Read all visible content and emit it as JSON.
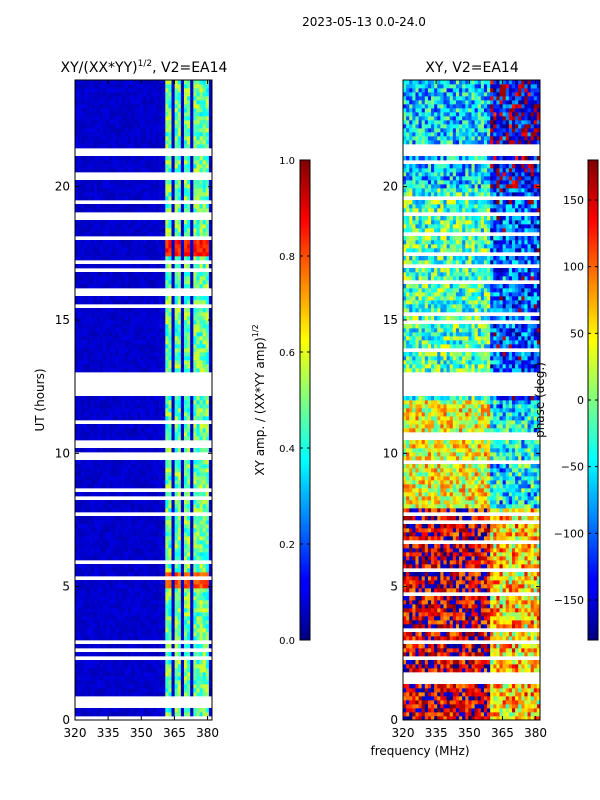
{
  "figure": {
    "suptitle": "2023-05-13 0.0-24.0",
    "xlabel": "frequency (MHz)",
    "ylabel": "UT (hours)"
  },
  "chart_data": [
    {
      "type": "heatmap",
      "title_main": "XY/(XX*YY)",
      "title_sup": "1/2",
      "title_tail": ", V2=EA14",
      "x": {
        "min": 320,
        "max": 382,
        "ticks": [
          320,
          335,
          350,
          365,
          380
        ],
        "tick_labels": [
          "320",
          "335",
          "350",
          "365",
          "380"
        ]
      },
      "y": {
        "min": 0,
        "max": 24,
        "ticks": [
          0,
          5,
          10,
          15,
          20
        ],
        "tick_labels": [
          "0",
          "5",
          "10",
          "15",
          "20"
        ]
      },
      "colorbar": {
        "label_main": "XY amp. / (XX*YY amp)",
        "label_sup": "1/2",
        "min": 0.0,
        "max": 1.0,
        "ticks": [
          0.0,
          0.2,
          0.4,
          0.6,
          0.8,
          1.0
        ],
        "tick_labels": [
          "0.0",
          "0.2",
          "0.4",
          "0.6",
          "0.8",
          "1.0"
        ]
      },
      "flagged_ut_ranges": [
        [
          12.1,
          13.1
        ],
        [
          21.1,
          21.5
        ],
        [
          7.65,
          7.8
        ]
      ],
      "high_amplitude_channels_mhz": [
        [
          361,
          364
        ],
        [
          365,
          368
        ],
        [
          369,
          372
        ],
        [
          374,
          376
        ],
        [
          377,
          380
        ]
      ],
      "hotspots": [
        {
          "ut": [
            17.4,
            18.0
          ],
          "value": 0.9
        },
        {
          "ut": [
            4.9,
            5.5
          ],
          "value": 0.85
        }
      ],
      "background_value": 0.05
    },
    {
      "type": "heatmap",
      "title": "XY, V2=EA14",
      "x": {
        "min": 320,
        "max": 382,
        "ticks": [
          320,
          335,
          350,
          365,
          380
        ],
        "tick_labels": [
          "320",
          "335",
          "350",
          "365",
          "380"
        ]
      },
      "y": {
        "min": 0,
        "max": 24,
        "ticks": [
          0,
          5,
          10,
          15,
          20
        ],
        "tick_labels": [
          "0",
          "5",
          "10",
          "15",
          "20"
        ]
      },
      "colorbar": {
        "label": "phase (deg.)",
        "min": -180,
        "max": 180,
        "ticks": [
          -150,
          -100,
          -50,
          0,
          50,
          100,
          150
        ],
        "tick_labels": [
          "−150",
          "−100",
          "−50",
          "0",
          "50",
          "100",
          "150"
        ]
      },
      "flagged_ut_ranges": [
        [
          12.1,
          13.1
        ],
        [
          21.1,
          21.5
        ],
        [
          7.65,
          7.8
        ]
      ],
      "dominant_phase_by_ut": [
        {
          "ut": [
            0,
            8
          ],
          "value": 150
        },
        {
          "ut": [
            8,
            12
          ],
          "value": 40
        },
        {
          "ut": [
            12,
            20
          ],
          "value": -20
        },
        {
          "ut": [
            20,
            24
          ],
          "value": -60
        }
      ]
    }
  ]
}
